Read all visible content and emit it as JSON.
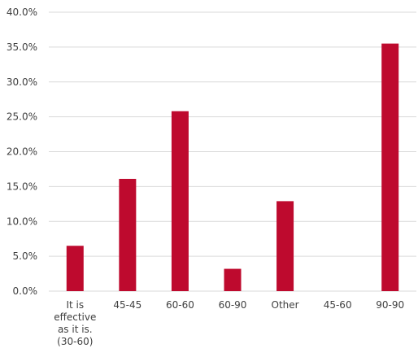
{
  "chart_data": {
    "type": "bar",
    "title": "",
    "xlabel": "",
    "ylabel": "",
    "categories": [
      [
        "It is",
        "effective",
        "as it is.",
        "(30-60)"
      ],
      [
        "45-45"
      ],
      [
        "60-60"
      ],
      [
        "60-90"
      ],
      [
        "Other"
      ],
      [
        "45-60"
      ],
      [
        "90-90"
      ]
    ],
    "values": [
      6.5,
      16.1,
      25.8,
      3.2,
      12.9,
      0.0,
      35.5
    ],
    "ylim": [
      0,
      40
    ],
    "yticks": [
      0,
      5,
      10,
      15,
      20,
      25,
      30,
      35,
      40
    ],
    "ytick_labels": [
      "0.0%",
      "5.0%",
      "10.0%",
      "15.0%",
      "20.0%",
      "25.0%",
      "30.0%",
      "35.0%",
      "40.0%"
    ],
    "grid": true,
    "legend": "none",
    "bar_color": "#be0a2e",
    "grid_color": "#d9d9d9"
  }
}
